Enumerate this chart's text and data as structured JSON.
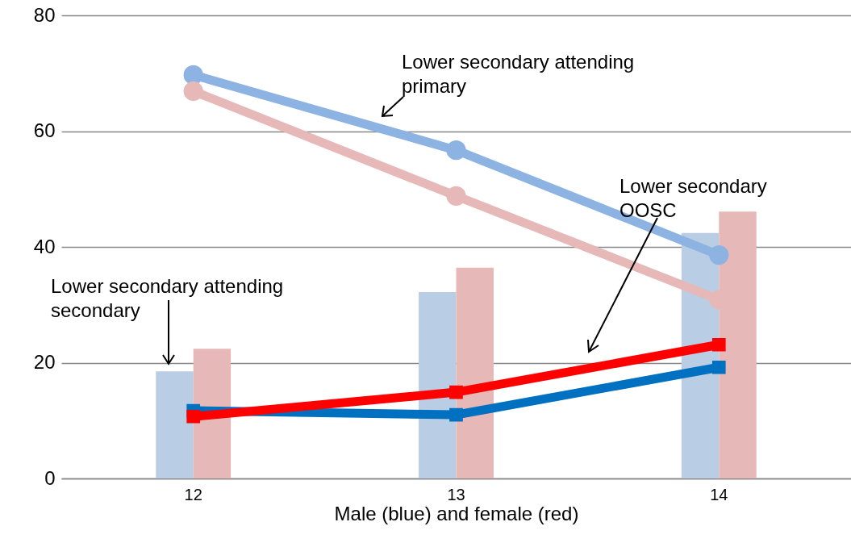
{
  "chart_data": {
    "type": "bar",
    "xlabel": "Male (blue) and female (red)",
    "categories": [
      "12",
      "13",
      "14"
    ],
    "ylim": [
      0,
      80
    ],
    "yticks": [
      0,
      20,
      40,
      60,
      80
    ],
    "grid": "y",
    "series": [
      {
        "color": "#b9cde5",
        "values": [
          18.5,
          32.2,
          42.4
        ]
      },
      {
        "color": "#e6b9b8",
        "values": [
          22.4,
          36.4,
          46.1
        ]
      },
      {
        "type": "line",
        "color": "#8db3e2",
        "marker": "circle",
        "values": [
          69.7,
          56.7,
          38.6
        ]
      },
      {
        "type": "line",
        "color": "#e6b9b8",
        "marker": "circle",
        "values": [
          66.9,
          48.8,
          30.9
        ]
      },
      {
        "type": "line",
        "color": "#0070c0",
        "marker": "square",
        "values": [
          11.7,
          11.0,
          19.2
        ]
      },
      {
        "type": "line",
        "color": "#ff0000",
        "marker": "square",
        "values": [
          10.7,
          14.9,
          23.1
        ]
      }
    ],
    "annotations": [
      "Lower secondary attending primary",
      "Lower secondary OOSC",
      "Lower secondary attending secondary"
    ]
  }
}
